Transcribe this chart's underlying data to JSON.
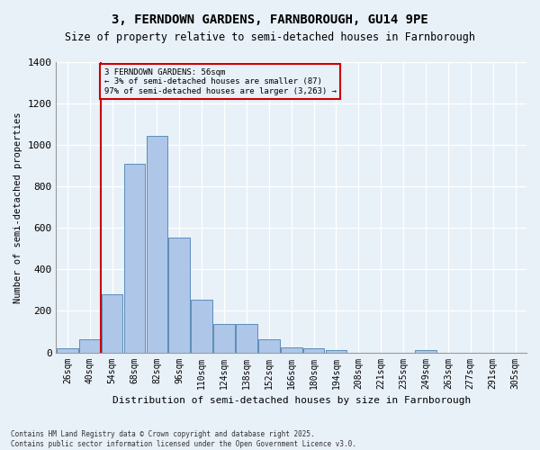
{
  "title_line1": "3, FERNDOWN GARDENS, FARNBOROUGH, GU14 9PE",
  "title_line2": "Size of property relative to semi-detached houses in Farnborough",
  "xlabel": "Distribution of semi-detached houses by size in Farnborough",
  "ylabel": "Number of semi-detached properties",
  "footer_line1": "Contains HM Land Registry data © Crown copyright and database right 2025.",
  "footer_line2": "Contains public sector information licensed under the Open Government Licence v3.0.",
  "categories": [
    "26sqm",
    "40sqm",
    "54sqm",
    "68sqm",
    "82sqm",
    "96sqm",
    "110sqm",
    "124sqm",
    "138sqm",
    "152sqm",
    "166sqm",
    "180sqm",
    "194sqm",
    "208sqm",
    "221sqm",
    "235sqm",
    "249sqm",
    "263sqm",
    "277sqm",
    "291sqm",
    "305sqm"
  ],
  "values": [
    18,
    65,
    280,
    910,
    1045,
    555,
    255,
    135,
    135,
    65,
    22,
    20,
    12,
    0,
    0,
    0,
    10,
    0,
    0,
    0,
    0
  ],
  "bar_color": "#aec6e8",
  "bar_edge_color": "#5b8db8",
  "background_color": "#e8f0f8",
  "grid_color": "#ffffff",
  "annotation_box_color": "#cc0000",
  "property_line_index": 1.5,
  "property_label": "3 FERNDOWN GARDENS: 56sqm",
  "smaller_pct": "3%",
  "smaller_count": "87",
  "larger_pct": "97%",
  "larger_count": "3,263",
  "ylim": [
    0,
    1400
  ],
  "yticks": [
    0,
    200,
    400,
    600,
    800,
    1000,
    1200,
    1400
  ]
}
